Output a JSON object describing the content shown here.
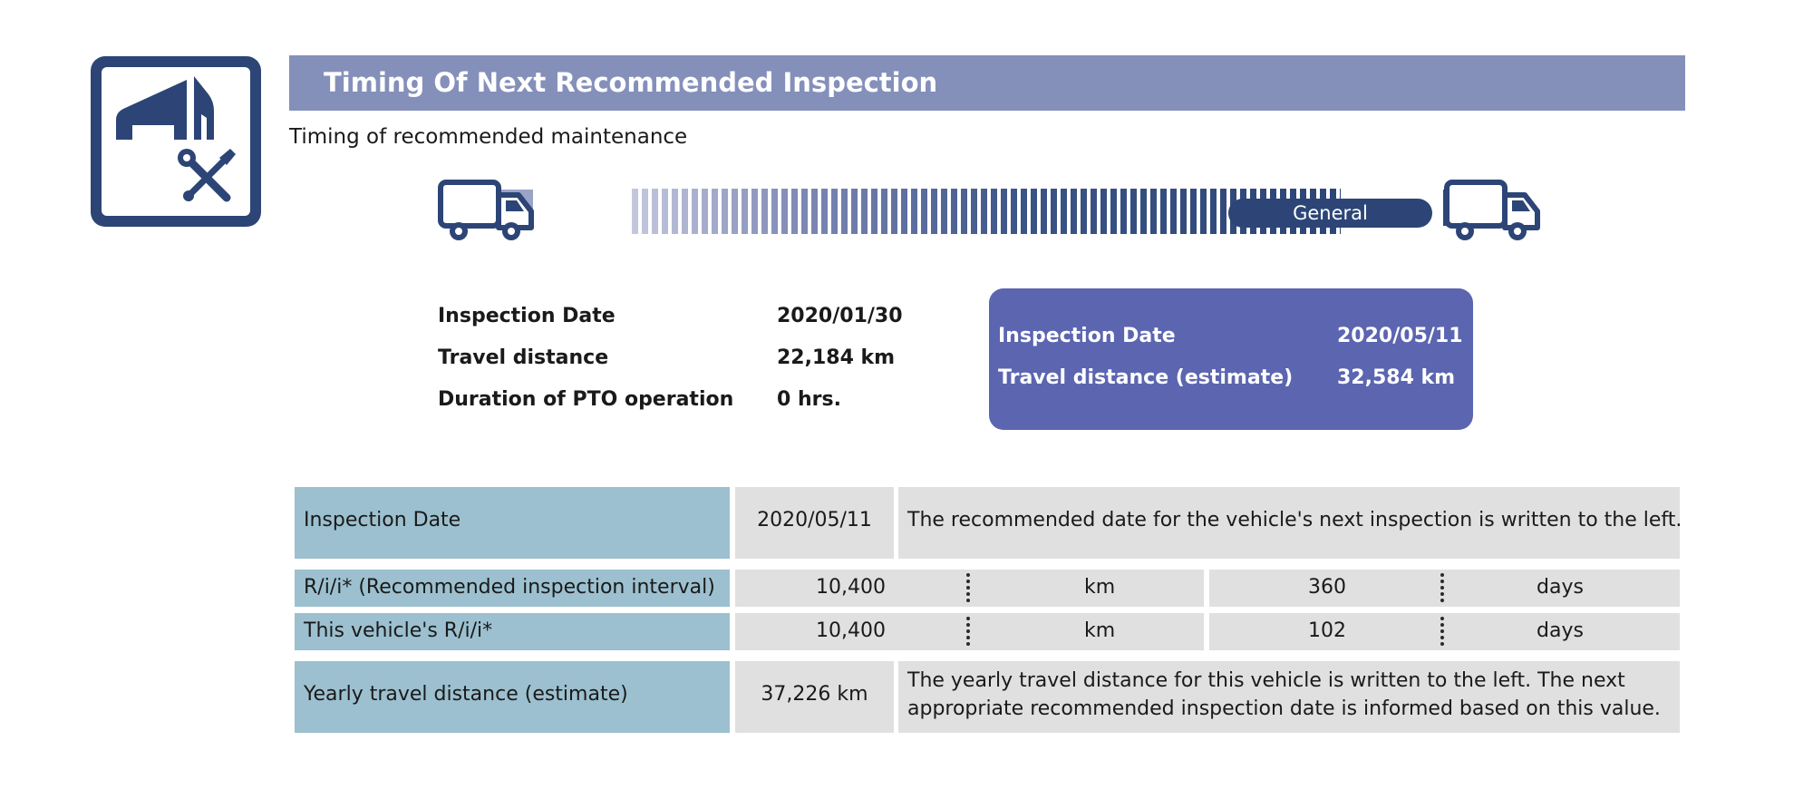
{
  "logo": {
    "icon": "garage-tools-icon",
    "color": "#2c4576"
  },
  "header": {
    "title": "Timing Of Next Recommended Inspection"
  },
  "subtitle": "Timing of recommended maintenance",
  "timeline": {
    "start_icon": "truck-icon",
    "end_icon": "truck-icon",
    "label": "General"
  },
  "last_inspection": {
    "rows": [
      {
        "label": "Inspection Date",
        "value": "2020/01/30"
      },
      {
        "label": "Travel distance",
        "value": "22,184 km"
      },
      {
        "label": "Duration of PTO operation",
        "value": "0 hrs."
      }
    ]
  },
  "next_inspection": {
    "color": "#5b65b0",
    "rows": [
      {
        "label": "Inspection Date",
        "value": "2020/05/11"
      },
      {
        "label": "Travel distance (estimate)",
        "value": "32,584 km"
      }
    ]
  },
  "table": {
    "inspection_date": {
      "label": "Inspection Date",
      "value": "2020/05/11",
      "note": "The recommended date for the vehicle's next inspection is written to the left."
    },
    "rii": {
      "label": "R/i/i* (Recommended inspection interval)",
      "km": "10,400",
      "km_unit": "km",
      "days": "360",
      "days_unit": "days"
    },
    "vehicle_rii": {
      "label": "This vehicle's R/i/i*",
      "km": "10,400",
      "km_unit": "km",
      "days": "102",
      "days_unit": "days"
    },
    "yearly": {
      "label": "Yearly travel distance (estimate)",
      "value": "37,226 km",
      "note_line1": "The yearly travel distance for this vehicle is written to the left. The next",
      "note_line2": "appropriate recommended inspection date is informed based on this value."
    }
  }
}
